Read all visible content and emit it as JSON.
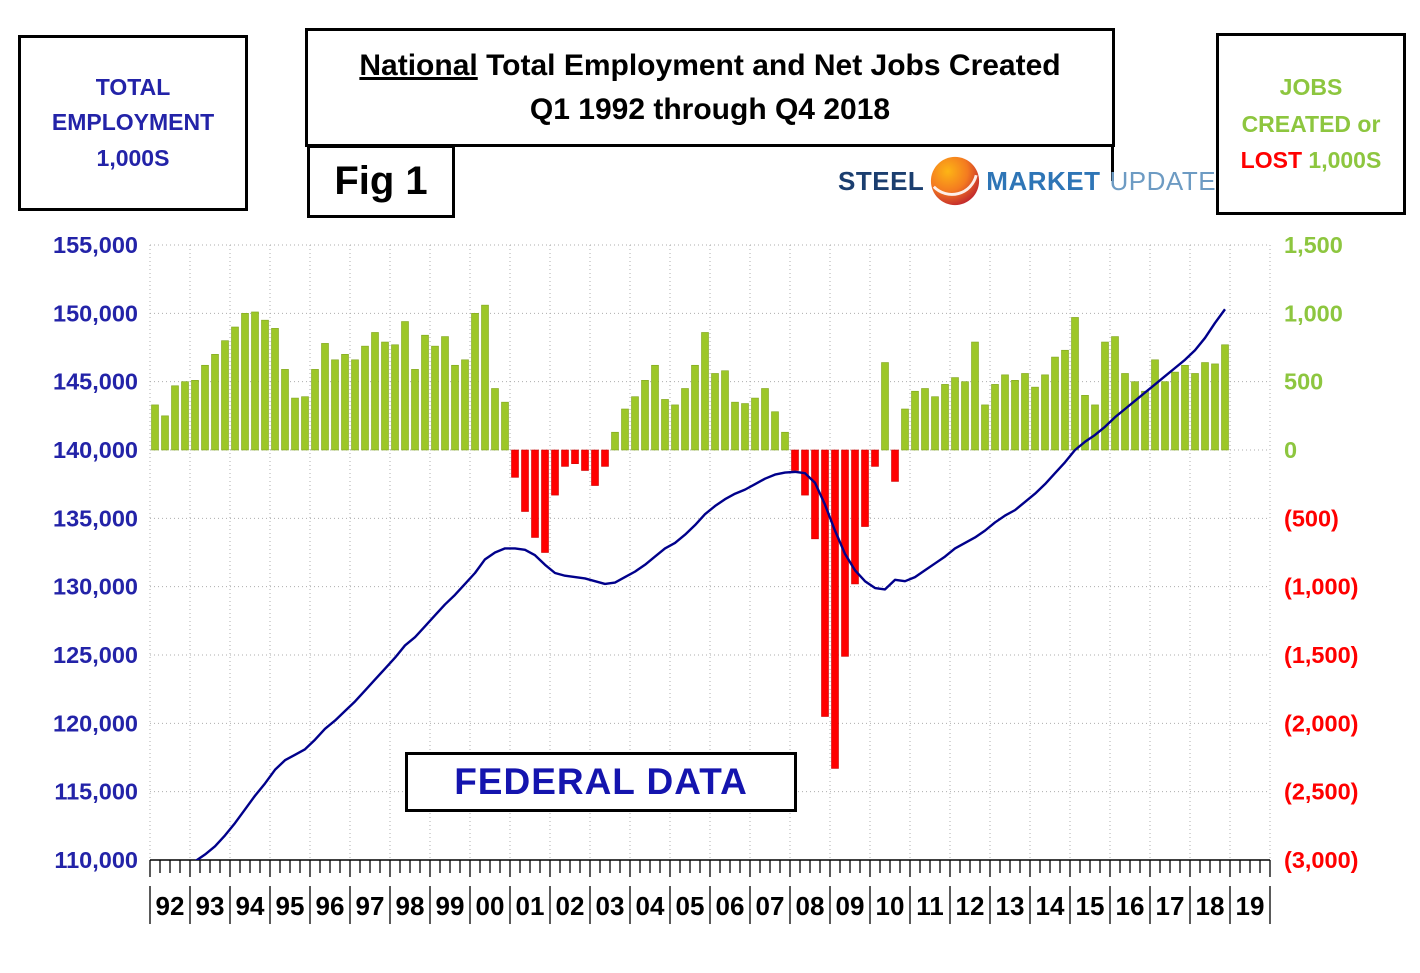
{
  "header": {
    "left_box": {
      "line1": "TOTAL",
      "line2": "EMPLOYMENT",
      "line3": "1,000S"
    },
    "title": {
      "emphasis": "National",
      "rest": " Total Employment and Net Jobs Created",
      "line2": "Q1 1992 through Q4 2018"
    },
    "fig_label": "Fig 1",
    "logo": {
      "steel": "STEEL",
      "market": "MARKET",
      "update": "UPDATE"
    },
    "right_box": {
      "line1": "JOBS",
      "line2": "CREATED or",
      "lost": "LOST",
      "units": "1,000S"
    }
  },
  "overlay": {
    "federal_data": "FEDERAL DATA"
  },
  "chart_data": {
    "type": "combo-bar-line",
    "title": "National Total Employment and Net Jobs Created Q1 1992 through Q4 2018",
    "source_note": "FEDERAL DATA",
    "x_years": [
      "92",
      "93",
      "94",
      "95",
      "96",
      "97",
      "98",
      "99",
      "00",
      "01",
      "02",
      "03",
      "04",
      "05",
      "06",
      "07",
      "08",
      "09",
      "10",
      "11",
      "12",
      "13",
      "14",
      "15",
      "16",
      "17",
      "18",
      "19"
    ],
    "left_axis": {
      "label": "Total Employment 1,000s",
      "min": 110000,
      "max": 155000,
      "step": 5000,
      "ticks": [
        "155,000",
        "150,000",
        "145,000",
        "140,000",
        "135,000",
        "130,000",
        "125,000",
        "120,000",
        "115,000",
        "110,000"
      ]
    },
    "right_axis": {
      "label": "Jobs Created or Lost 1,000s",
      "min": -3000,
      "max": 1500,
      "step": 500,
      "ticks": [
        "1,500",
        "1,000",
        "500",
        "0",
        "(500)",
        "(1,000)",
        "(1,500)",
        "(2,000)",
        "(2,500)",
        "(3,000)"
      ]
    },
    "bars": {
      "name": "Net Jobs Created / Lost (1,000s), quarterly",
      "start_quarter": "1992Q1",
      "baseline_left_value": 140000,
      "left_units_per_right_unit": 10,
      "values": [
        330,
        250,
        470,
        500,
        510,
        620,
        700,
        800,
        900,
        1000,
        1010,
        950,
        890,
        590,
        380,
        390,
        590,
        780,
        660,
        700,
        660,
        760,
        860,
        790,
        770,
        940,
        590,
        840,
        760,
        830,
        620,
        660,
        1000,
        1060,
        450,
        350,
        -200,
        -450,
        -640,
        -750,
        -330,
        -120,
        -100,
        -150,
        -260,
        -120,
        130,
        300,
        390,
        510,
        620,
        370,
        330,
        450,
        620,
        860,
        560,
        580,
        350,
        340,
        380,
        450,
        280,
        130,
        -150,
        -330,
        -650,
        -1950,
        -2330,
        -1510,
        -980,
        -560,
        -120,
        640,
        -230,
        300,
        430,
        450,
        390,
        480,
        530,
        500,
        790,
        330,
        480,
        550,
        510,
        560,
        460,
        550,
        680,
        730,
        970,
        400,
        330,
        790,
        830,
        560,
        500,
        430,
        660,
        500,
        570,
        620,
        560,
        640,
        630,
        770
      ]
    },
    "line": {
      "name": "Total Employment (1,000s), quarterly",
      "start_quarter": "1992Q1",
      "values": [
        108400,
        108700,
        109000,
        109400,
        109900,
        110400,
        111000,
        111800,
        112700,
        113700,
        114700,
        115600,
        116600,
        117300,
        117700,
        118100,
        118800,
        119600,
        120200,
        120900,
        121600,
        122400,
        123200,
        124000,
        124800,
        125700,
        126300,
        127100,
        127900,
        128700,
        129400,
        130200,
        131000,
        132000,
        132500,
        132800,
        132800,
        132700,
        132300,
        131600,
        131000,
        130800,
        130700,
        130600,
        130400,
        130200,
        130300,
        130700,
        131100,
        131600,
        132200,
        132800,
        133200,
        133800,
        134500,
        135300,
        135900,
        136400,
        136800,
        137100,
        137500,
        137900,
        138200,
        138350,
        138400,
        138300,
        137600,
        136000,
        134100,
        132400,
        131200,
        130400,
        129900,
        129800,
        130500,
        130400,
        130700,
        131200,
        131700,
        132200,
        132800,
        133200,
        133600,
        134100,
        134700,
        135200,
        135600,
        136200,
        136800,
        137500,
        138300,
        139100,
        140000,
        140600,
        141100,
        141700,
        142400,
        143000,
        143600,
        144200,
        144800,
        145400,
        146000,
        146600,
        147300,
        148200,
        149300,
        150300
      ]
    },
    "colors": {
      "bar_positive": "#9DC728",
      "bar_positive_stroke": "#7FA41C",
      "bar_negative": "#FF0000",
      "bar_negative_stroke": "#CC0000",
      "line": "#00008B",
      "grid": "#ADADAD",
      "left_labels": "#2323A8",
      "right_labels_positive": "#8DC63F",
      "right_labels_negative": "#FF0000"
    },
    "grid": {
      "horizontal": true,
      "vertical": true,
      "style": "dotted"
    },
    "legend_position": "none"
  }
}
